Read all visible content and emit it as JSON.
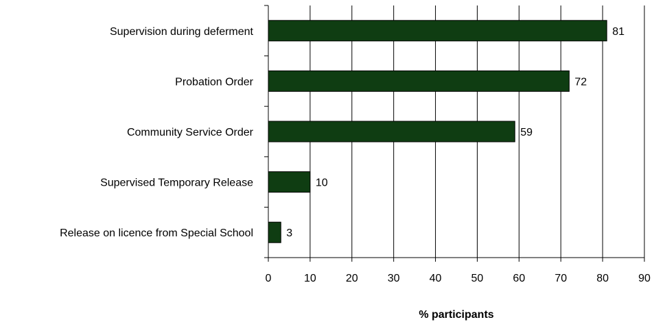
{
  "chart_data": {
    "type": "bar",
    "orientation": "horizontal",
    "categories": [
      "Supervision during deferment",
      "Probation Order",
      "Community Service Order",
      "Supervised Temporary Release",
      "Release on licence from Special School"
    ],
    "values": [
      81,
      72,
      59,
      10,
      3
    ],
    "data_labels": [
      "81",
      "72",
      "59",
      "10",
      "3"
    ],
    "xlabel": "% participants",
    "ylabel": "",
    "title": "",
    "xlim": [
      0,
      90
    ],
    "xticks": [
      0,
      10,
      20,
      30,
      40,
      50,
      60,
      70,
      80,
      90
    ],
    "grid": "vertical",
    "legend": "none",
    "bar_color": "#0f3d12",
    "bar_edge_color": "#000000",
    "grid_color": "#000000"
  }
}
